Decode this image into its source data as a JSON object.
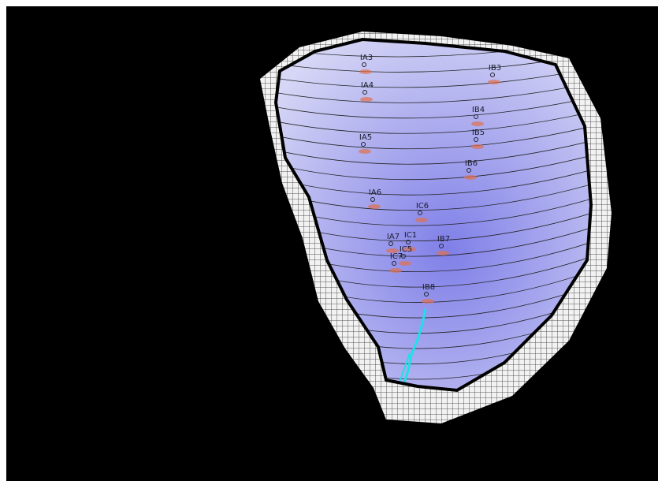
{
  "points": [
    {
      "label": "IA3"
    },
    {
      "label": "IA4"
    },
    {
      "label": "IA5"
    },
    {
      "label": "IA6"
    },
    {
      "label": "IA7"
    },
    {
      "label": "IB3"
    },
    {
      "label": "IB4"
    },
    {
      "label": "IB5"
    },
    {
      "label": "IB6"
    },
    {
      "label": "IB7"
    },
    {
      "label": "IB8"
    },
    {
      "label": "IC1"
    },
    {
      "label": "IC5"
    },
    {
      "label": "IC6"
    },
    {
      "label": "IC7"
    }
  ]
}
